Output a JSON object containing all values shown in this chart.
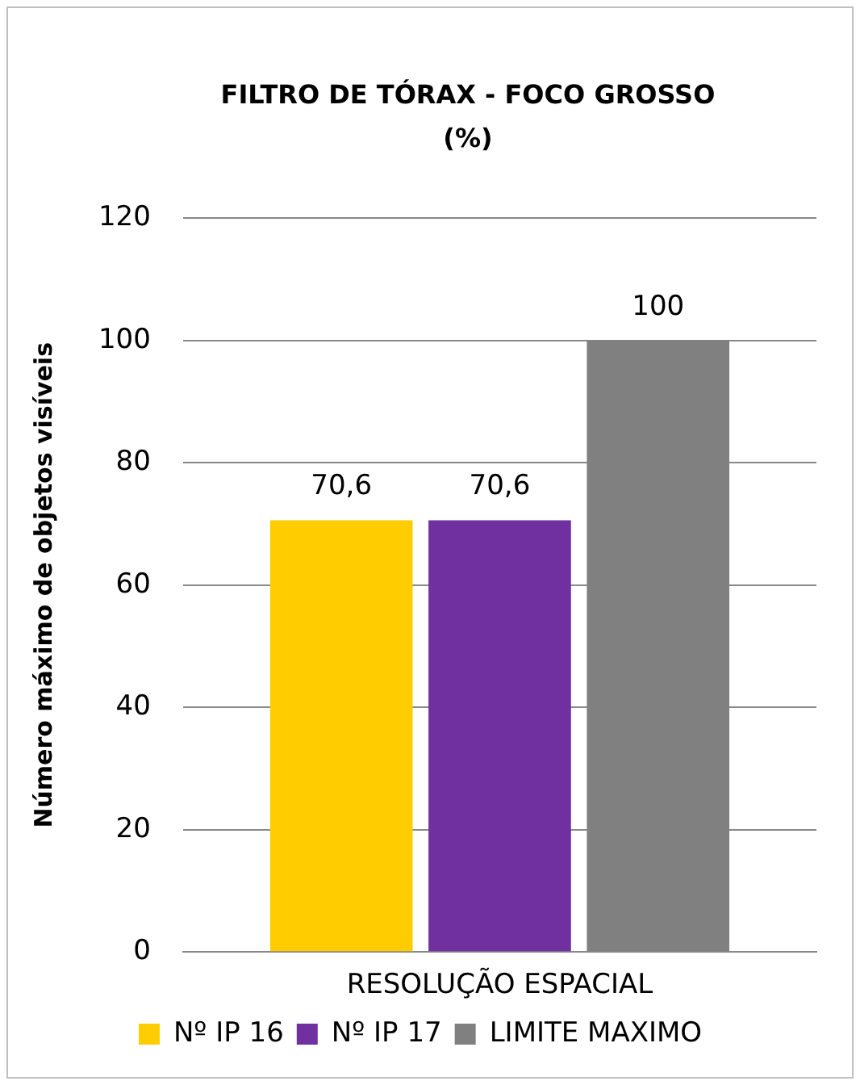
{
  "chart_data": {
    "type": "bar",
    "title": "FILTRO DE TÓRAX - FOCO GROSSO (%)",
    "ylabel": "Número máximo de objetos visíveis",
    "categories": [
      "RESOLUÇÃO ESPACIAL"
    ],
    "series": [
      {
        "name": "Nº IP 16",
        "color": "#ffcc00",
        "values": [
          70.6
        ],
        "value_labels": [
          "70,6"
        ]
      },
      {
        "name": "Nº IP 17",
        "color": "#7030a0",
        "values": [
          70.6
        ],
        "value_labels": [
          "70,6"
        ]
      },
      {
        "name": "LIMITE MAXIMO",
        "color": "#808080",
        "values": [
          100
        ],
        "value_labels": [
          "100"
        ]
      }
    ],
    "ylim": [
      0,
      120
    ],
    "yticks": [
      0,
      20,
      40,
      60,
      80,
      100,
      120
    ],
    "grid": "y",
    "legend": "bottom"
  }
}
